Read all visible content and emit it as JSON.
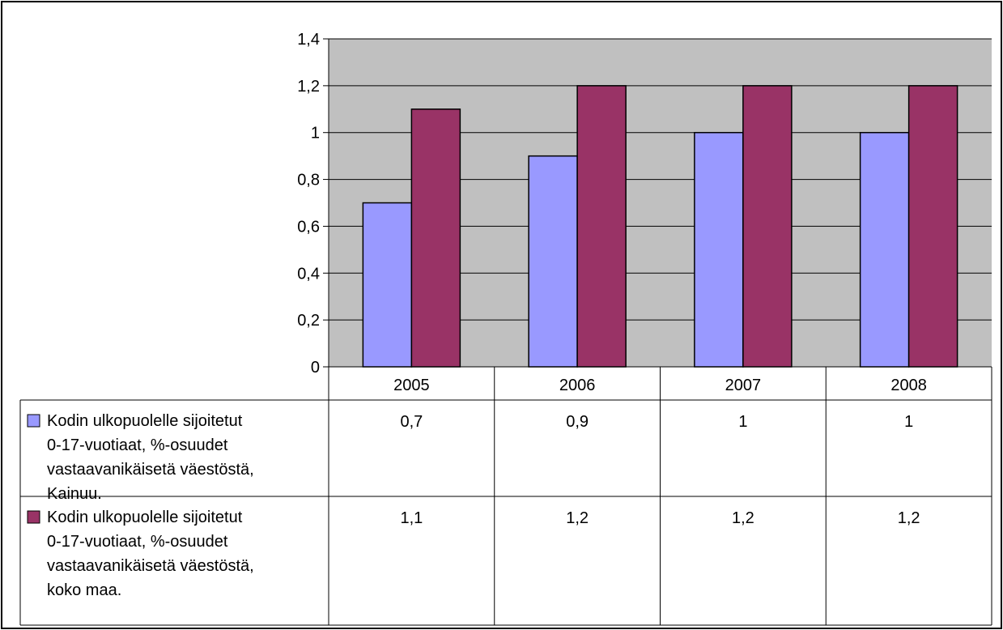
{
  "chart_data": {
    "type": "bar",
    "title": "",
    "xlabel": "",
    "ylabel": "",
    "categories": [
      "2005",
      "2006",
      "2007",
      "2008"
    ],
    "ylim": [
      0,
      1.4
    ],
    "yticks": [
      "0",
      "0,2",
      "0,4",
      "0,6",
      "0,8",
      "1",
      "1,2",
      "1,4"
    ],
    "ytick_values": [
      0,
      0.2,
      0.4,
      0.6,
      0.8,
      1.0,
      1.2,
      1.4
    ],
    "grid": true,
    "legend": "data-table-below",
    "plot_background": "#c0c0c0",
    "series": [
      {
        "name": "Kodin ulkopuolelle sijoitetut 0-17-vuotiaat, %-osuudet vastaavanikäisetä väestöstä, Kainuu.",
        "name_lines": [
          "Kodin ulkopuolelle sijoitetut",
          "0-17-vuotiaat, %-osuudet",
          "vastaavanikäisetä väestöstä,",
          "Kainuu."
        ],
        "values": [
          0.7,
          0.9,
          1,
          1
        ],
        "labels": [
          "0,7",
          "0,9",
          "1",
          "1"
        ],
        "color": "#9999ff"
      },
      {
        "name": "Kodin ulkopuolelle sijoitetut 0-17-vuotiaat, %-osuudet vastaavanikäisetä väestöstä, koko maa.",
        "name_lines": [
          "Kodin ulkopuolelle sijoitetut",
          "0-17-vuotiaat, %-osuudet",
          "vastaavanikäisetä väestöstä,",
          "koko maa."
        ],
        "values": [
          1.1,
          1.2,
          1.2,
          1.2
        ],
        "labels": [
          "1,1",
          "1,2",
          "1,2",
          "1,2"
        ],
        "color": "#993366"
      }
    ]
  }
}
